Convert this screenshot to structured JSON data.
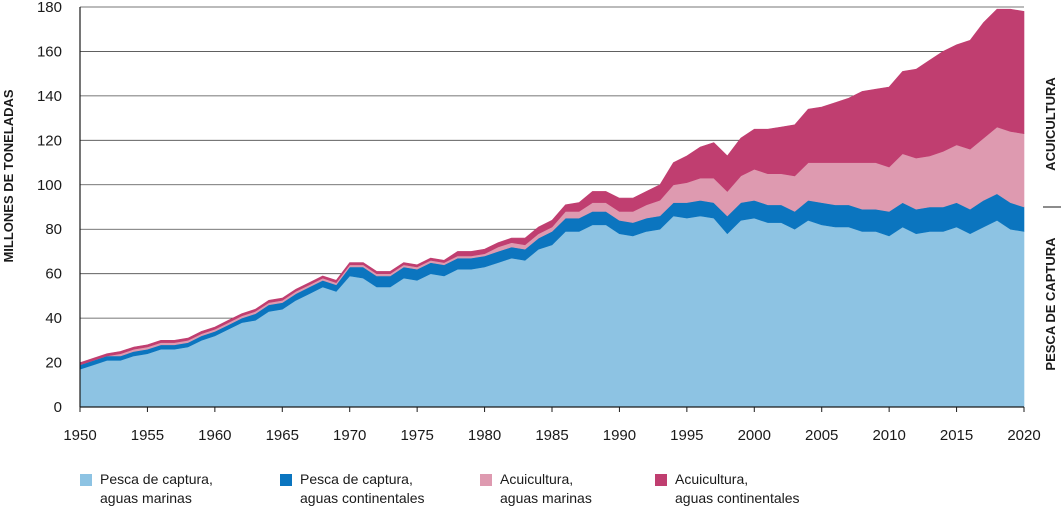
{
  "chart_data": {
    "type": "area",
    "stacked": true,
    "title": "",
    "ylabel": "MILLONES DE TONELADAS",
    "xlabel": "",
    "ylim": [
      0,
      180
    ],
    "yticks": [
      0,
      20,
      40,
      60,
      80,
      100,
      120,
      140,
      160,
      180
    ],
    "xlim": [
      1950,
      2020
    ],
    "xticks": [
      1950,
      1955,
      1960,
      1965,
      1970,
      1975,
      1980,
      1985,
      1990,
      1995,
      2000,
      2005,
      2010,
      2015,
      2020
    ],
    "side_labels": {
      "aquaculture": "ACUICULTURA",
      "capture": "PESCA DE CAPTURA"
    },
    "grid": true,
    "legend_position": "bottom",
    "x": [
      1950,
      1951,
      1952,
      1953,
      1954,
      1955,
      1956,
      1957,
      1958,
      1959,
      1960,
      1961,
      1962,
      1963,
      1964,
      1965,
      1966,
      1967,
      1968,
      1969,
      1970,
      1971,
      1972,
      1973,
      1974,
      1975,
      1976,
      1977,
      1978,
      1979,
      1980,
      1981,
      1982,
      1983,
      1984,
      1985,
      1986,
      1987,
      1988,
      1989,
      1990,
      1991,
      1992,
      1993,
      1994,
      1995,
      1996,
      1997,
      1998,
      1999,
      2000,
      2001,
      2002,
      2003,
      2004,
      2005,
      2006,
      2007,
      2008,
      2009,
      2010,
      2011,
      2012,
      2013,
      2014,
      2015,
      2016,
      2017,
      2018,
      2019,
      2020
    ],
    "series": [
      {
        "name": "Pesca de captura, aguas marinas",
        "color": "#8dc3e3",
        "values": [
          17,
          19,
          21,
          21,
          23,
          24,
          26,
          26,
          27,
          30,
          32,
          35,
          38,
          39,
          43,
          44,
          48,
          51,
          54,
          52,
          59,
          58,
          54,
          54,
          58,
          57,
          60,
          59,
          62,
          62,
          63,
          65,
          67,
          66,
          71,
          73,
          79,
          79,
          82,
          82,
          78,
          77,
          79,
          80,
          86,
          85,
          86,
          85,
          78,
          84,
          85,
          83,
          83,
          80,
          84,
          82,
          81,
          81,
          79,
          79,
          77,
          81,
          78,
          79,
          79,
          81,
          78,
          81,
          84,
          80,
          79
        ]
      },
      {
        "name": "Pesca de captura, aguas continentales",
        "color": "#0b75bf",
        "values": [
          2,
          2,
          2,
          2,
          2,
          2,
          2,
          2,
          2,
          2,
          2,
          2,
          2,
          3,
          3,
          3,
          3,
          3,
          3,
          3,
          4,
          5,
          5,
          5,
          5,
          5,
          5,
          5,
          5,
          5,
          5,
          5,
          5,
          5,
          5,
          6,
          6,
          6,
          6,
          6,
          6,
          6,
          6,
          6,
          6,
          7,
          7,
          7,
          8,
          8,
          8,
          8,
          8,
          8,
          9,
          10,
          10,
          10,
          10,
          10,
          11,
          11,
          11,
          11,
          11,
          11,
          11,
          12,
          12,
          12,
          11
        ]
      },
      {
        "name": "Acuicultura, aguas marinas",
        "color": "#de9ab0",
        "values": [
          0,
          0,
          0,
          1,
          1,
          1,
          1,
          1,
          1,
          1,
          1,
          1,
          1,
          1,
          1,
          1,
          1,
          1,
          1,
          1,
          1,
          1,
          1,
          1,
          1,
          1,
          1,
          1,
          1,
          1,
          1,
          2,
          2,
          2,
          2,
          2,
          3,
          3,
          4,
          4,
          4,
          5,
          6,
          7,
          8,
          9,
          10,
          11,
          11,
          12,
          14,
          14,
          14,
          16,
          17,
          18,
          19,
          19,
          21,
          21,
          20,
          22,
          23,
          23,
          25,
          26,
          27,
          28,
          30,
          32,
          33
        ]
      },
      {
        "name": "Acuicultura, aguas continentales",
        "color": "#c03e70",
        "values": [
          1,
          1,
          1,
          1,
          1,
          1,
          1,
          1,
          1,
          1,
          1,
          1,
          1,
          1,
          1,
          1,
          1,
          1,
          1,
          1,
          1,
          1,
          1,
          1,
          1,
          1,
          1,
          1,
          2,
          2,
          2,
          2,
          2,
          3,
          3,
          3,
          3,
          4,
          5,
          5,
          6,
          6,
          6,
          7,
          10,
          12,
          14,
          16,
          16,
          17,
          18,
          20,
          21,
          23,
          24,
          25,
          27,
          29,
          32,
          33,
          36,
          37,
          40,
          43,
          45,
          45,
          49,
          52,
          53,
          55,
          55
        ]
      }
    ]
  },
  "legend": [
    {
      "label": "Pesca de captura,\naguas marinas",
      "color": "#8dc3e3"
    },
    {
      "label": "Pesca de captura,\naguas continentales",
      "color": "#0b75bf"
    },
    {
      "label": "Acuicultura,\naguas marinas",
      "color": "#de9ab0"
    },
    {
      "label": "Acuicultura,\naguas continentales",
      "color": "#c03e70"
    }
  ]
}
